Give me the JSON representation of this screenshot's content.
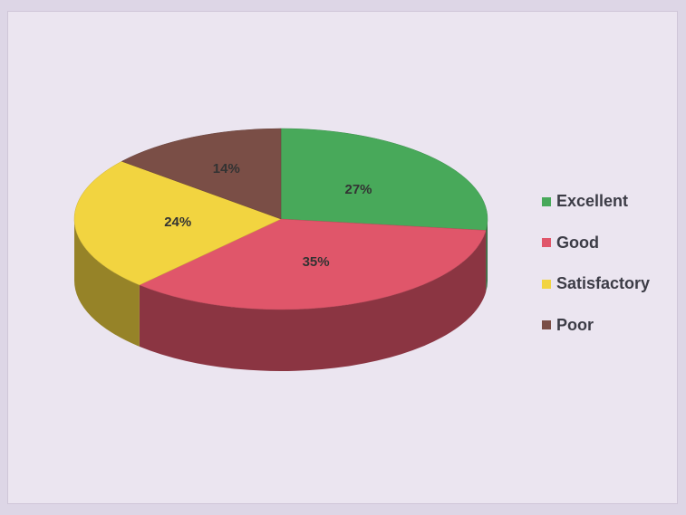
{
  "chart_data": {
    "type": "pie",
    "title": "",
    "legend_position": "right",
    "slices": [
      {
        "label": "Excellent",
        "value": 27,
        "display": "27%",
        "color": "#48a95a"
      },
      {
        "label": "Good",
        "value": 35,
        "display": "35%",
        "color": "#e0566a"
      },
      {
        "label": "Satisfactory",
        "value": 24,
        "display": "24%",
        "color": "#f2d440"
      },
      {
        "label": "Poor",
        "value": 14,
        "display": "14%",
        "color": "#7a4e46"
      }
    ]
  }
}
